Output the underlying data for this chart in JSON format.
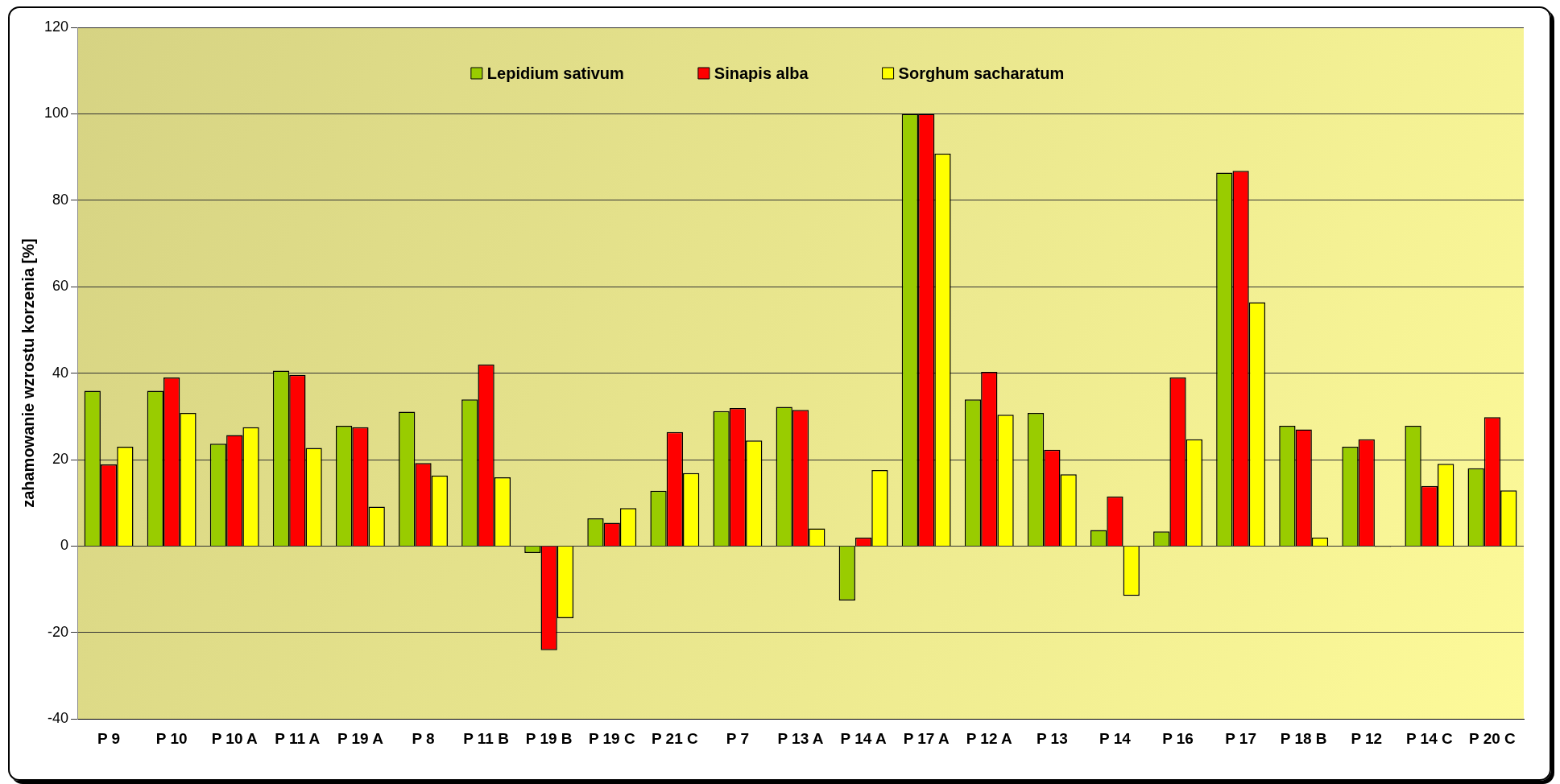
{
  "chart_data": {
    "type": "bar",
    "ylabel": "zahamowanie wzrostu korzenia [%]",
    "categories": [
      "P 9",
      "P 10",
      "P 10 A",
      "P 11 A",
      "P 19 A",
      "P 8",
      "P 11 B",
      "P 19 B",
      "P 19 C",
      "P 21 C",
      "P 7",
      "P 13 A",
      "P 14 A",
      "P 17 A",
      "P 12 A",
      "P 13",
      "P 14",
      "P 16",
      "P 17",
      "P 18 B",
      "P 12",
      "P 14 C",
      "P 20 C"
    ],
    "series": [
      {
        "name": "Lepidium sativum",
        "color": "#99cc00",
        "values": [
          35.9,
          35.9,
          23.7,
          40.6,
          27.8,
          31.1,
          33.9,
          -1.6,
          6.4,
          12.8,
          31.2,
          32.2,
          -12.6,
          100,
          33.9,
          30.8,
          3.7,
          3.4,
          86.4,
          27.8,
          23.0,
          27.8,
          18.0
        ]
      },
      {
        "name": "Sinapis alba",
        "color": "#ff0000",
        "values": [
          18.9,
          39.0,
          25.7,
          39.6,
          27.5,
          19.2,
          42.0,
          -24.1,
          5.4,
          26.4,
          31.9,
          31.5,
          2.0,
          100,
          40.3,
          22.3,
          11.5,
          39.0,
          86.8,
          27.0,
          24.7,
          13.9,
          29.8
        ]
      },
      {
        "name": "Sorghum sacharatum",
        "color": "#ffff00",
        "values": [
          23.0,
          30.8,
          27.5,
          22.7,
          9.1,
          16.3,
          15.9,
          -16.7,
          8.8,
          16.9,
          24.4,
          4.1,
          17.6,
          90.8,
          30.4,
          16.6,
          -11.5,
          24.7,
          56.4,
          2.0,
          -0.2,
          19.0,
          12.9
        ]
      }
    ],
    "ylim": [
      -40,
      120
    ],
    "yticks": [
      -40,
      -20,
      0,
      20,
      40,
      60,
      80,
      100,
      120
    ],
    "grid": "y",
    "legend": "top"
  }
}
